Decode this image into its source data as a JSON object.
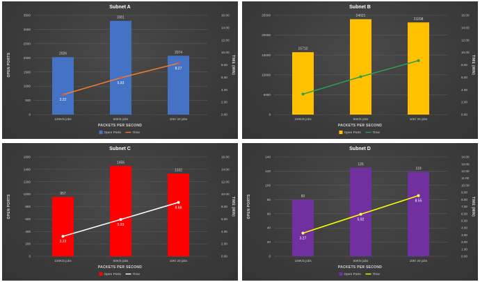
{
  "chart_data": [
    {
      "type": "bar",
      "title": "Subnet A",
      "categories": [
        "100K/5 jobs",
        "50K/5 jobs",
        "10K/ 20 jobs"
      ],
      "xlabel": "PACKETS PER SECOND",
      "ylabel": "OPEN PORTS",
      "y2label": "TIME (MIN)",
      "ylim": [
        0,
        3500
      ],
      "y_ticks": [
        "0",
        "500",
        "1000",
        "1500",
        "2000",
        "2500",
        "3000",
        "3500"
      ],
      "y2lim": [
        0,
        16
      ],
      "y2_ticks": [
        "0.00",
        "2.00",
        "4.00",
        "6.00",
        "8.00",
        "10.00",
        "12.00",
        "14.00",
        "16.00"
      ],
      "series": [
        {
          "name": "Open Ports",
          "kind": "bar",
          "axis": "left",
          "color": "#4472c4",
          "values": [
            2026,
            3301,
            2074
          ],
          "labels": [
            "2026",
            "3301",
            "2074"
          ]
        },
        {
          "name": "Time",
          "kind": "line",
          "axis": "right",
          "color": "#ed7d31",
          "marker": "#c55a55",
          "values": [
            3.22,
            5.93,
            8.27
          ],
          "labels": [
            "3.22",
            "5.93",
            "8.27"
          ]
        }
      ],
      "legend": "bottom",
      "grid": true
    },
    {
      "type": "bar",
      "title": "Subnet B",
      "categories": [
        "100K/5 jobs",
        "50K/5 jobs",
        "10K/ 20 jobs"
      ],
      "xlabel": "PACKETS PER SECOND",
      "ylabel": "",
      "y2label": "TIME (MIN)",
      "ylim": [
        0,
        25000
      ],
      "y_ticks": [
        "0",
        "5000",
        "10000",
        "15000",
        "20000",
        "25000"
      ],
      "y2lim": [
        0,
        16
      ],
      "y2_ticks": [
        "0.00",
        "2.00",
        "4.00",
        "6.00",
        "8.00",
        "10.00",
        "12.00",
        "14.00",
        "16.00"
      ],
      "series": [
        {
          "name": "Open Ports",
          "kind": "bar",
          "axis": "left",
          "color": "#ffc000",
          "values": [
            15710,
            24021,
            23208
          ],
          "labels": [
            "15710",
            "24021",
            "23208"
          ]
        },
        {
          "name": "Time",
          "kind": "line",
          "axis": "right",
          "color": "#2e9e4f",
          "marker": "#2e9e4f",
          "values": [
            3.3,
            6.1,
            8.7
          ],
          "labels": [
            "",
            "",
            ""
          ]
        }
      ],
      "legend": "bottom",
      "grid": true
    },
    {
      "type": "bar",
      "title": "Subnet C",
      "categories": [
        "100K/5 jobs",
        "50K/5 jobs",
        "10K/ 20 jobs"
      ],
      "xlabel": "PACKETS PER SECOND",
      "ylabel": "OPEN PORTS",
      "y2label": "TIME (MIN)",
      "ylim": [
        0,
        1600
      ],
      "y_ticks": [
        "0",
        "200",
        "400",
        "600",
        "800",
        "1000",
        "1200",
        "1400",
        "1600"
      ],
      "y2lim": [
        0,
        16
      ],
      "y2_ticks": [
        "0.00",
        "2.00",
        "4.00",
        "6.00",
        "8.00",
        "10.00",
        "12.00",
        "14.00",
        "16.00"
      ],
      "series": [
        {
          "name": "Open Ports",
          "kind": "bar",
          "axis": "left",
          "color": "#ff0000",
          "values": [
            957,
            1456,
            1332
          ],
          "labels": [
            "957",
            "1456",
            "1332"
          ]
        },
        {
          "name": "Time",
          "kind": "line",
          "axis": "right",
          "color": "#ffffff",
          "marker": "#ffffff",
          "values": [
            3.22,
            5.93,
            8.68
          ],
          "labels": [
            "3.22",
            "5.93",
            "8.68"
          ]
        }
      ],
      "legend": "bottom",
      "grid": true
    },
    {
      "type": "bar",
      "title": "Subnet D",
      "categories": [
        "100K/5 jobs",
        "50K/5 jobs",
        "10K/ 20 jobs"
      ],
      "xlabel": "PACKETS PER SECOND",
      "ylabel": "OPEN PORTS",
      "y2label": "TIME (MIN)",
      "ylim": [
        0,
        140
      ],
      "y_ticks": [
        "0",
        "20",
        "40",
        "60",
        "80",
        "100",
        "120",
        "140"
      ],
      "y2lim": [
        0,
        14
      ],
      "y2_ticks": [
        "0.00",
        "1.00",
        "2.00",
        "3.00",
        "4.00",
        "5.00",
        "6.00",
        "7.00",
        "8.00",
        "9.00",
        "10.00",
        "11.00",
        "12.00",
        "13.00",
        "14.00"
      ],
      "series": [
        {
          "name": "Open Ports",
          "kind": "bar",
          "axis": "left",
          "color": "#7030a0",
          "values": [
            80,
            125,
            119
          ],
          "labels": [
            "80",
            "125",
            "119"
          ]
        },
        {
          "name": "Time",
          "kind": "line",
          "axis": "right",
          "color": "#ffff00",
          "marker": "#ffff66",
          "values": [
            3.27,
            5.92,
            8.55
          ],
          "labels": [
            "3.27",
            "5.92",
            "8.55"
          ]
        }
      ],
      "legend": "bottom",
      "grid": true
    }
  ]
}
